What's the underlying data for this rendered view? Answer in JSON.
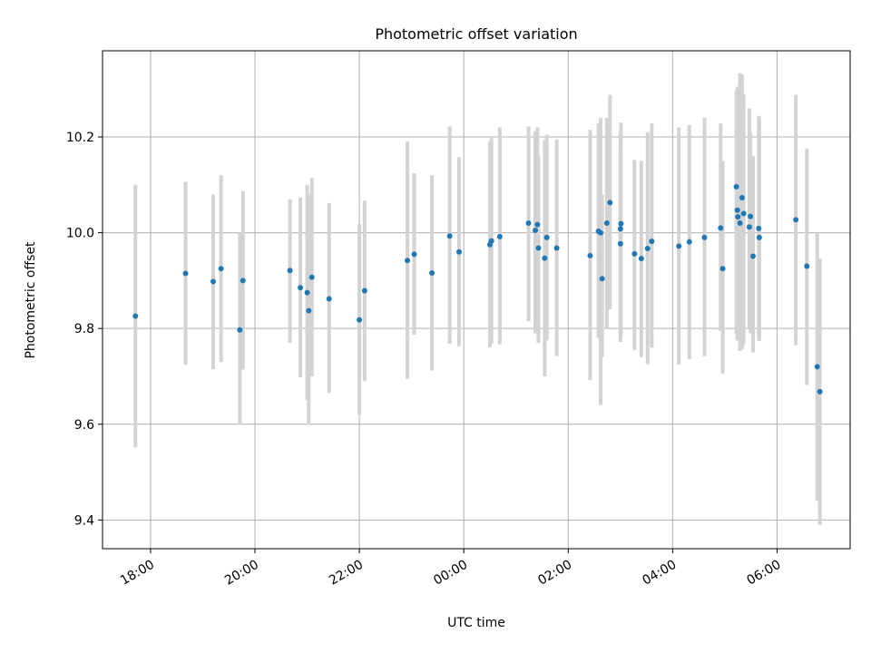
{
  "chart_data": {
    "type": "scatter",
    "title": "Photometric offset variation",
    "xlabel": "UTC time",
    "ylabel": "Photometric offset",
    "x_ticks": [
      {
        "hour": -6,
        "label": "18:00"
      },
      {
        "hour": -4,
        "label": "20:00"
      },
      {
        "hour": -2,
        "label": "22:00"
      },
      {
        "hour": 0,
        "label": "00:00"
      },
      {
        "hour": 2,
        "label": "02:00"
      },
      {
        "hour": 4,
        "label": "04:00"
      },
      {
        "hour": 6,
        "label": "06:00"
      }
    ],
    "xlim": [
      -6.92,
      7.4
    ],
    "ylim": [
      9.34,
      10.38
    ],
    "y_ticks": [
      {
        "value": 9.4,
        "label": "9.4"
      },
      {
        "value": 9.6,
        "label": "9.6"
      },
      {
        "value": 9.8,
        "label": "9.8"
      },
      {
        "value": 10.0,
        "label": "10.0"
      },
      {
        "value": 10.2,
        "label": "10.2"
      }
    ],
    "grid": true,
    "colors": {
      "points": "#1f77b4",
      "error_bars": "#d3d3d3",
      "grid": "#b0b0b0"
    },
    "series": [
      {
        "x_hours": [
          -6.29,
          -5.33,
          -4.8,
          -4.65,
          -4.29,
          -4.23,
          -3.33,
          -3.13,
          -3.0,
          -2.97,
          -2.91,
          -2.58,
          -2.0,
          -1.9,
          -1.08,
          -0.95,
          -0.61,
          -0.27,
          -0.09,
          0.5,
          0.53,
          0.69,
          1.24,
          1.37,
          1.41,
          1.43,
          1.55,
          1.59,
          1.78,
          2.42,
          2.58,
          2.62,
          2.65,
          2.74,
          2.8,
          3.0,
          3.01,
          3.0,
          3.27,
          3.4,
          3.52,
          3.6,
          4.12,
          4.32,
          4.61,
          4.92,
          4.96,
          5.22,
          5.24,
          5.25,
          5.29,
          5.33,
          5.36,
          5.47,
          5.49,
          5.54,
          5.65,
          5.66,
          6.36,
          6.57,
          6.77,
          6.82
        ],
        "y": [
          9.826,
          9.915,
          9.898,
          9.925,
          9.797,
          9.9,
          9.921,
          9.885,
          9.875,
          9.837,
          9.907,
          9.862,
          9.818,
          9.879,
          9.942,
          9.955,
          9.916,
          9.993,
          9.96,
          9.975,
          9.983,
          9.992,
          10.02,
          10.005,
          10.017,
          9.968,
          9.947,
          9.99,
          9.968,
          9.952,
          10.003,
          10.0,
          9.904,
          10.02,
          10.063,
          9.977,
          10.019,
          10.008,
          9.956,
          9.946,
          9.967,
          9.982,
          9.972,
          9.981,
          9.99,
          10.01,
          9.925,
          10.096,
          10.047,
          10.033,
          10.02,
          10.073,
          10.04,
          10.012,
          10.034,
          9.951,
          10.009,
          9.99,
          10.027,
          9.93,
          9.72,
          9.668
        ],
        "y_low": [
          9.552,
          9.724,
          9.715,
          9.73,
          9.6,
          9.714,
          9.77,
          9.698,
          9.65,
          9.6,
          9.7,
          9.665,
          9.62,
          9.69,
          9.695,
          9.787,
          9.712,
          9.768,
          9.763,
          9.76,
          9.768,
          9.767,
          9.815,
          9.79,
          9.795,
          9.77,
          9.7,
          9.775,
          9.742,
          9.692,
          9.78,
          9.64,
          9.74,
          9.8,
          9.84,
          9.772,
          9.785,
          9.8,
          9.755,
          9.74,
          9.725,
          9.76,
          9.725,
          9.736,
          9.742,
          9.795,
          9.706,
          9.79,
          9.775,
          9.78,
          9.753,
          9.757,
          9.765,
          9.8,
          9.79,
          9.75,
          9.776,
          9.774,
          9.765,
          9.682,
          9.44,
          9.39
        ],
        "y_high": [
          10.1,
          10.106,
          10.08,
          10.12,
          10.0,
          10.087,
          10.07,
          10.073,
          10.1,
          10.08,
          10.114,
          10.062,
          10.018,
          10.067,
          10.19,
          10.124,
          10.12,
          10.222,
          10.158,
          10.19,
          10.198,
          10.22,
          10.222,
          10.212,
          10.22,
          10.16,
          10.194,
          10.205,
          10.195,
          10.215,
          10.228,
          10.24,
          10.08,
          10.24,
          10.288,
          10.18,
          10.23,
          10.21,
          10.152,
          10.15,
          10.21,
          10.228,
          10.22,
          10.225,
          10.24,
          10.228,
          10.15,
          10.296,
          10.305,
          10.29,
          10.333,
          10.33,
          10.29,
          10.26,
          10.21,
          10.16,
          10.244,
          10.24,
          10.288,
          10.176,
          10.0,
          9.946
        ]
      }
    ]
  }
}
